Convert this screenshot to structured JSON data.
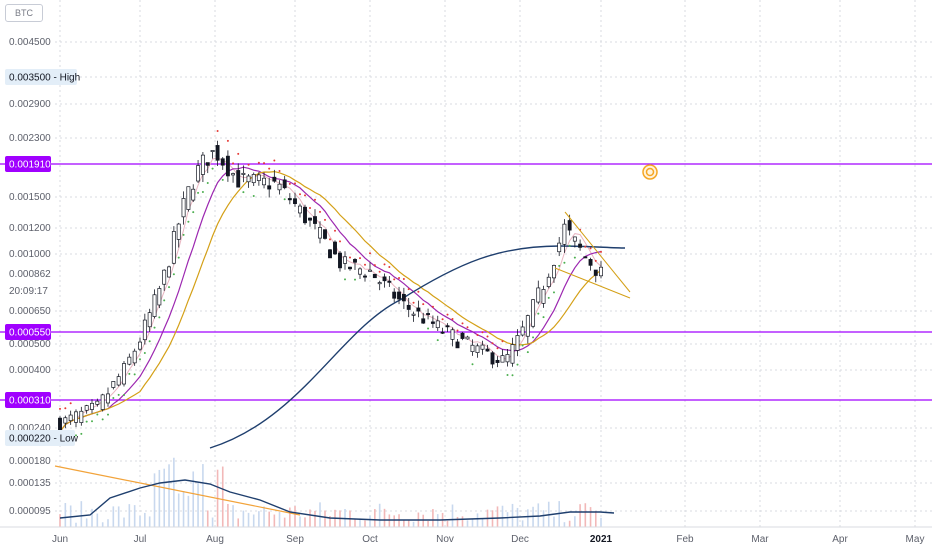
{
  "symbol_badge": "BTC",
  "colors": {
    "up": "#ffffff",
    "down": "#131722",
    "level": "#a000ff",
    "ma_pink": "#e8b4c0",
    "ma_purple": "#9c27b0",
    "ma_gold": "#d4a017",
    "curve": "#1f3f6e",
    "volume_up": "#c8d8ee",
    "volume_down": "#f2b8b8",
    "volume_ma": "#1f3f6e",
    "volume_trend": "#f2a33a",
    "sar_up": "#4caf50",
    "sar_down": "#e53935",
    "marker": "#f5a623"
  },
  "price_labels": {
    "high": "0.003500 - High",
    "low": "0.000220 - Low",
    "last_price": "0.000862",
    "countdown": "20:09:17"
  },
  "levels": [
    {
      "label": "0.001910",
      "value": 0.00191
    },
    {
      "label": "0.000550",
      "value": 0.00055
    },
    {
      "label": "0.000310",
      "value": 0.00031
    }
  ],
  "chart_data": {
    "type": "candlestick",
    "x_axis": [
      "Jun",
      "Jul",
      "Aug",
      "Sep",
      "Oct",
      "Nov",
      "Dec",
      "2021",
      "Feb",
      "Mar",
      "Apr",
      "May"
    ],
    "y_ticks": [
      "0.004500",
      "0.002900",
      "0.002300",
      "0.001500",
      "0.001200",
      "0.001000",
      "0.000650",
      "0.000500",
      "0.000400",
      "0.000240",
      "0.000180",
      "0.000135",
      "0.000095"
    ],
    "y_scale": "log",
    "high": 0.0035,
    "low": 0.00022,
    "last": 0.000862,
    "close_path": [
      {
        "date": "2020-06-01",
        "close": 0.00025
      },
      {
        "date": "2020-06-15",
        "close": 0.00029
      },
      {
        "date": "2020-06-25",
        "close": 0.0004
      },
      {
        "date": "2020-07-01",
        "close": 0.00052
      },
      {
        "date": "2020-07-10",
        "close": 0.0008
      },
      {
        "date": "2020-07-20",
        "close": 0.0015
      },
      {
        "date": "2020-07-26",
        "close": 0.0019
      },
      {
        "date": "2020-08-01",
        "close": 0.0021
      },
      {
        "date": "2020-08-10",
        "close": 0.0017
      },
      {
        "date": "2020-08-25",
        "close": 0.00165
      },
      {
        "date": "2020-09-05",
        "close": 0.0013
      },
      {
        "date": "2020-09-20",
        "close": 0.00092
      },
      {
        "date": "2020-10-01",
        "close": 0.00088
      },
      {
        "date": "2020-10-15",
        "close": 0.00068
      },
      {
        "date": "2020-11-01",
        "close": 0.00055
      },
      {
        "date": "2020-11-15",
        "close": 0.00047
      },
      {
        "date": "2020-11-25",
        "close": 0.00043
      },
      {
        "date": "2020-12-01",
        "close": 0.00053
      },
      {
        "date": "2020-12-10",
        "close": 0.0008
      },
      {
        "date": "2020-12-18",
        "close": 0.0012
      },
      {
        "date": "2020-12-25",
        "close": 0.001
      },
      {
        "date": "2021-01-01",
        "close": 0.000862
      }
    ]
  }
}
